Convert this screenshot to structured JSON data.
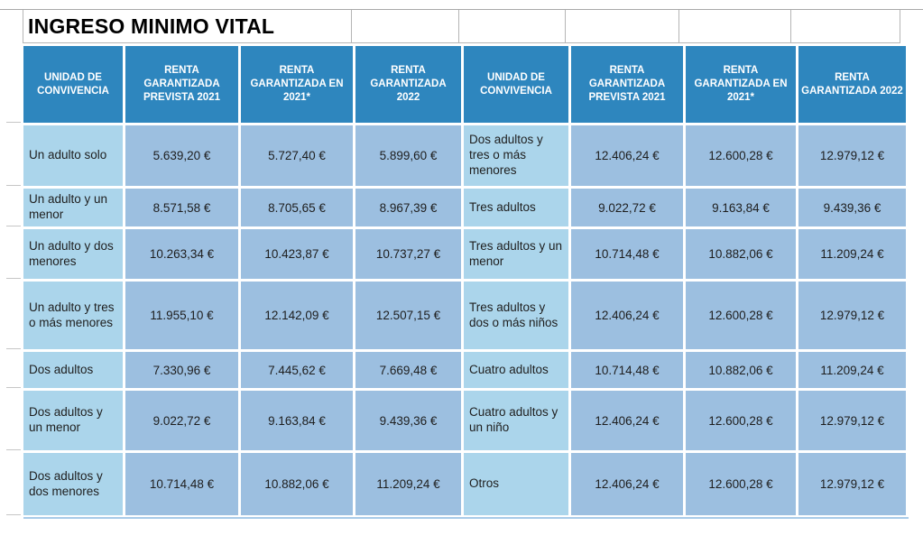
{
  "title": "INGRESO MINIMO VITAL",
  "colors": {
    "header_bg": "#2E86BE",
    "header_text": "#FFFFFF",
    "label_cell_bg": "#ABD5EB",
    "value_cell_bg": "#9CBFE0",
    "body_text": "#1E1E1E",
    "grid_line": "#B5B5B5",
    "bottom_rule": "#A8CBE8"
  },
  "chart_data": {
    "type": "table",
    "title": "INGRESO MINIMO VITAL",
    "columns": [
      "UNIDAD DE CONVIVENCIA",
      "RENTA GARANTIZADA PREVISTA 2021",
      "RENTA GARANTIZADA EN 2021*",
      "RENTA GARANTIZADA 2022",
      "UNIDAD DE CONVIVENCIA",
      "RENTA GARANTIZADA PREVISTA 2021",
      "RENTA GARANTIZADA EN 2021*",
      "RENTA GARANTIZADA 2022"
    ],
    "rows": [
      [
        "Un adulto solo",
        "5.639,20 €",
        "5.727,40 €",
        "5.899,60 €",
        "Dos adultos y tres o más menores",
        "12.406,24 €",
        "12.600,28 €",
        "12.979,12 €"
      ],
      [
        "Un adulto y un menor",
        "8.571,58 €",
        "8.705,65 €",
        "8.967,39 €",
        "Tres adultos",
        "9.022,72 €",
        "9.163,84 €",
        "9.439,36 €"
      ],
      [
        "Un adulto y dos menores",
        "10.263,34 €",
        "10.423,87 €",
        "10.737,27 €",
        "Tres adultos y un menor",
        "10.714,48 €",
        "10.882,06 €",
        "11.209,24 €"
      ],
      [
        "Un adulto y tres o más menores",
        "11.955,10 €",
        "12.142,09 €",
        "12.507,15 €",
        "Tres adultos y dos o más niños",
        "12.406,24 €",
        "12.600,28 €",
        "12.979,12 €"
      ],
      [
        "Dos adultos",
        "7.330,96 €",
        "7.445,62 €",
        "7.669,48 €",
        "Cuatro adultos",
        "10.714,48 €",
        "10.882,06 €",
        "11.209,24 €"
      ],
      [
        "Dos adultos y un menor",
        "9.022,72 €",
        "9.163,84 €",
        "9.439,36 €",
        "Cuatro adultos y un niño",
        "12.406,24 €",
        "12.600,28 €",
        "12.979,12 €"
      ],
      [
        "Dos adultos y dos menores",
        "10.714,48 €",
        "10.882,06 €",
        "11.209,24 €",
        "Otros",
        "12.406,24 €",
        "12.600,28 €",
        "12.979,12 €"
      ]
    ]
  }
}
